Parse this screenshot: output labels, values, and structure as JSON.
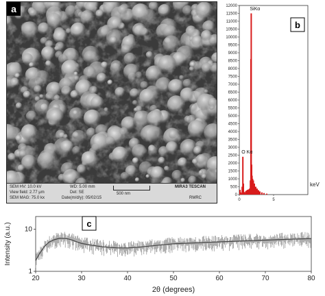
{
  "panel_a": {
    "label": "a",
    "info": {
      "sem_hv": "SEM HV: 10.0 kV",
      "view_field": "View field: 2.77 μm",
      "sem_mag": "SEM MAG: 75.0 kx",
      "wd": "WD: 5.00 mm",
      "det": "Det: SE",
      "date": "Date(m/d/y): 05/02/15",
      "scale": "500 nm",
      "instrument": "MIRA3 TESCAN",
      "lab": "RMRC"
    }
  },
  "chart_data": [
    {
      "type": "bar",
      "label": "b",
      "ylim": [
        0,
        12000
      ],
      "yticks": [
        "0",
        "500",
        "1000",
        "1500",
        "2000",
        "2500",
        "3000",
        "3500",
        "4000",
        "4500",
        "5000",
        "5500",
        "6000",
        "6500",
        "7000",
        "7500",
        "8000",
        "8500",
        "9000",
        "9500",
        "10000",
        "10500",
        "11000",
        "11500",
        "12000"
      ],
      "xlim": [
        0,
        10
      ],
      "xticks": [
        "0",
        "5"
      ],
      "xunit": "keV",
      "series": [
        {
          "color": "#d81c1c",
          "x": [
            0.1,
            0.18,
            0.26,
            0.34,
            0.42,
            0.52,
            0.6,
            0.7,
            0.8,
            0.92,
            1.05,
            1.2,
            1.35,
            1.5,
            1.62,
            1.7,
            1.74,
            1.8,
            1.86,
            1.94,
            2.05,
            2.2,
            2.4,
            2.6,
            2.8,
            3.0,
            3.3,
            3.6,
            4.0
          ],
          "values": [
            300,
            150,
            80,
            60,
            500,
            2400,
            700,
            160,
            90,
            200,
            260,
            300,
            330,
            380,
            900,
            8600,
            11500,
            1900,
            1200,
            1000,
            900,
            700,
            500,
            380,
            280,
            200,
            140,
            100,
            60
          ]
        }
      ],
      "annotations": [
        {
          "text": "SiKα",
          "x": 1.74,
          "y": 11700
        },
        {
          "text": "O Kα",
          "x": 0.52,
          "y": 2600
        }
      ]
    },
    {
      "type": "line",
      "label": "c",
      "xlabel": "2θ (degrees)",
      "ylabel": "Intensity (a.u.)",
      "xlim": [
        20,
        80
      ],
      "xticks": [
        20,
        30,
        40,
        50,
        60,
        70,
        80
      ],
      "ylog": true,
      "ylim": [
        1,
        20
      ],
      "yticks": [
        1,
        10
      ],
      "series": [
        {
          "x": [
            20,
            21,
            22,
            23,
            24,
            25,
            26,
            27,
            28,
            29,
            30,
            32,
            34,
            36,
            38,
            40,
            42,
            44,
            46,
            48,
            50,
            52,
            54,
            56,
            58,
            60,
            62,
            64,
            66,
            68,
            70,
            72,
            74,
            76,
            78,
            80
          ],
          "values": [
            1.8,
            2.8,
            4.0,
            5.0,
            5.6,
            6.0,
            6.1,
            5.9,
            5.5,
            5.0,
            4.6,
            4.2,
            3.9,
            3.7,
            3.6,
            3.6,
            3.7,
            3.9,
            4.1,
            4.3,
            4.5,
            4.6,
            4.7,
            4.8,
            4.9,
            5.0,
            5.1,
            5.2,
            5.3,
            5.4,
            5.5,
            5.6,
            5.7,
            5.8,
            5.9,
            6.0
          ]
        }
      ]
    }
  ]
}
